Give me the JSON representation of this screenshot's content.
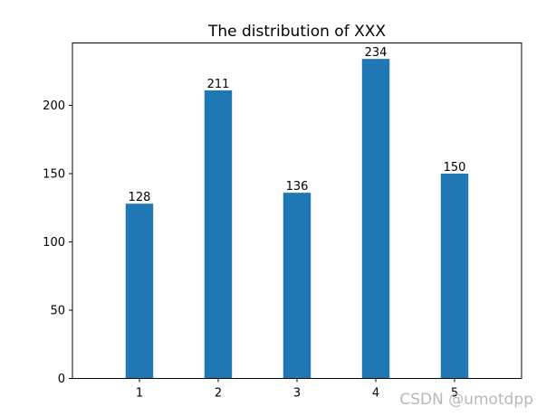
{
  "chart_data": {
    "type": "bar",
    "title": "The distribution of XXX",
    "categories": [
      "1",
      "2",
      "3",
      "4",
      "5"
    ],
    "values": [
      128,
      211,
      136,
      234,
      150
    ],
    "data_labels": [
      "128",
      "211",
      "136",
      "234",
      "150"
    ],
    "xlabel": "",
    "ylabel": "",
    "ylim": [
      0,
      245.7
    ],
    "yticks": [
      0,
      50,
      100,
      150,
      200
    ],
    "grid": false,
    "bar_color": "#1f77b4"
  },
  "watermark": "CSDN @umotdpp"
}
